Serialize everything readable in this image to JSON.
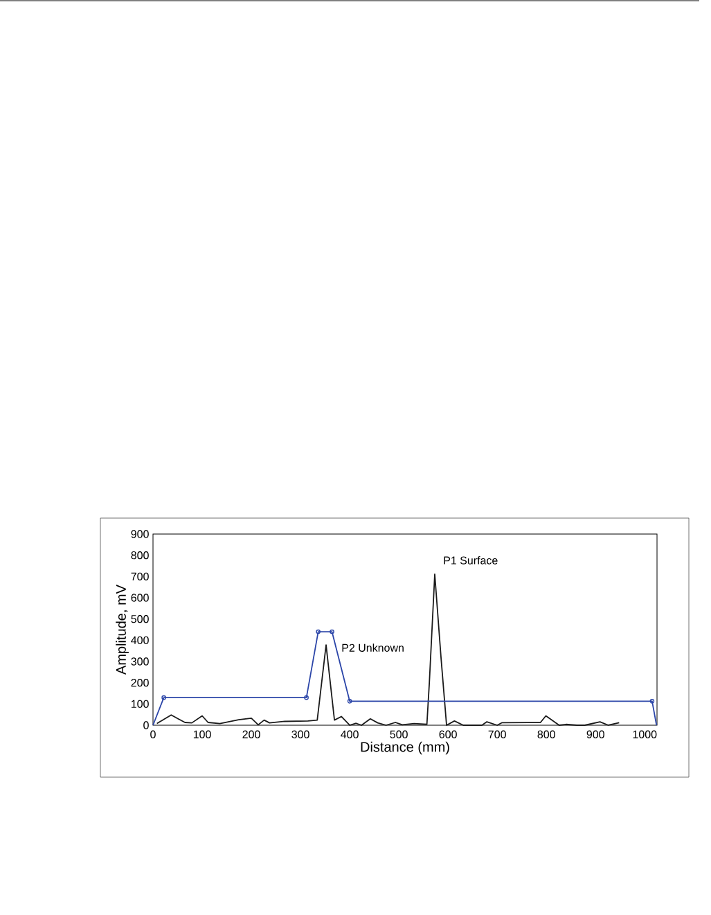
{
  "chart_data": {
    "type": "line",
    "xlabel": "Distance (mm)",
    "ylabel": "Amplitude, mV",
    "xlim": [
      0,
      1025
    ],
    "xticks": [
      0,
      100,
      200,
      300,
      400,
      500,
      600,
      700,
      800,
      900,
      1000
    ],
    "ylim": [
      0,
      900
    ],
    "yticks": [
      0,
      100,
      200,
      300,
      400,
      500,
      600,
      700,
      800,
      900
    ],
    "grid": false,
    "line_style": "solid",
    "annotations": [
      {
        "text": "P1 Surface",
        "x": 573,
        "y": 711
      },
      {
        "text": "P2 Unknown",
        "x": 352,
        "y": 378
      }
    ],
    "series": [
      {
        "color": "#1a1a1a",
        "marker": "none",
        "x": [
          8,
          37,
          65,
          79,
          100,
          112,
          136,
          174,
          200,
          214,
          226,
          237,
          268,
          315,
          334,
          352,
          369,
          383,
          400,
          413,
          424,
          442,
          457,
          474,
          493,
          507,
          531,
          557,
          562,
          573,
          586,
          597,
          613,
          631,
          669,
          679,
          700,
          710,
          788,
          799,
          826,
          840,
          862,
          878,
          909,
          926,
          948
        ],
        "values": [
          8,
          48,
          13,
          11,
          44,
          13,
          8,
          26,
          33,
          2,
          24,
          11,
          18,
          20,
          24,
          378,
          24,
          41,
          0,
          9,
          0,
          30,
          11,
          0,
          13,
          2,
          8,
          4,
          200,
          711,
          311,
          0,
          20,
          0,
          0,
          16,
          0,
          12,
          13,
          44,
          0,
          4,
          0,
          0,
          16,
          0,
          12
        ]
      },
      {
        "color": "#2b45a8",
        "marker": "circle",
        "x": [
          0,
          22,
          312,
          336,
          364,
          400,
          1015,
          1024
        ],
        "values": [
          0,
          130,
          130,
          440,
          440,
          113,
          113,
          0
        ]
      }
    ]
  }
}
